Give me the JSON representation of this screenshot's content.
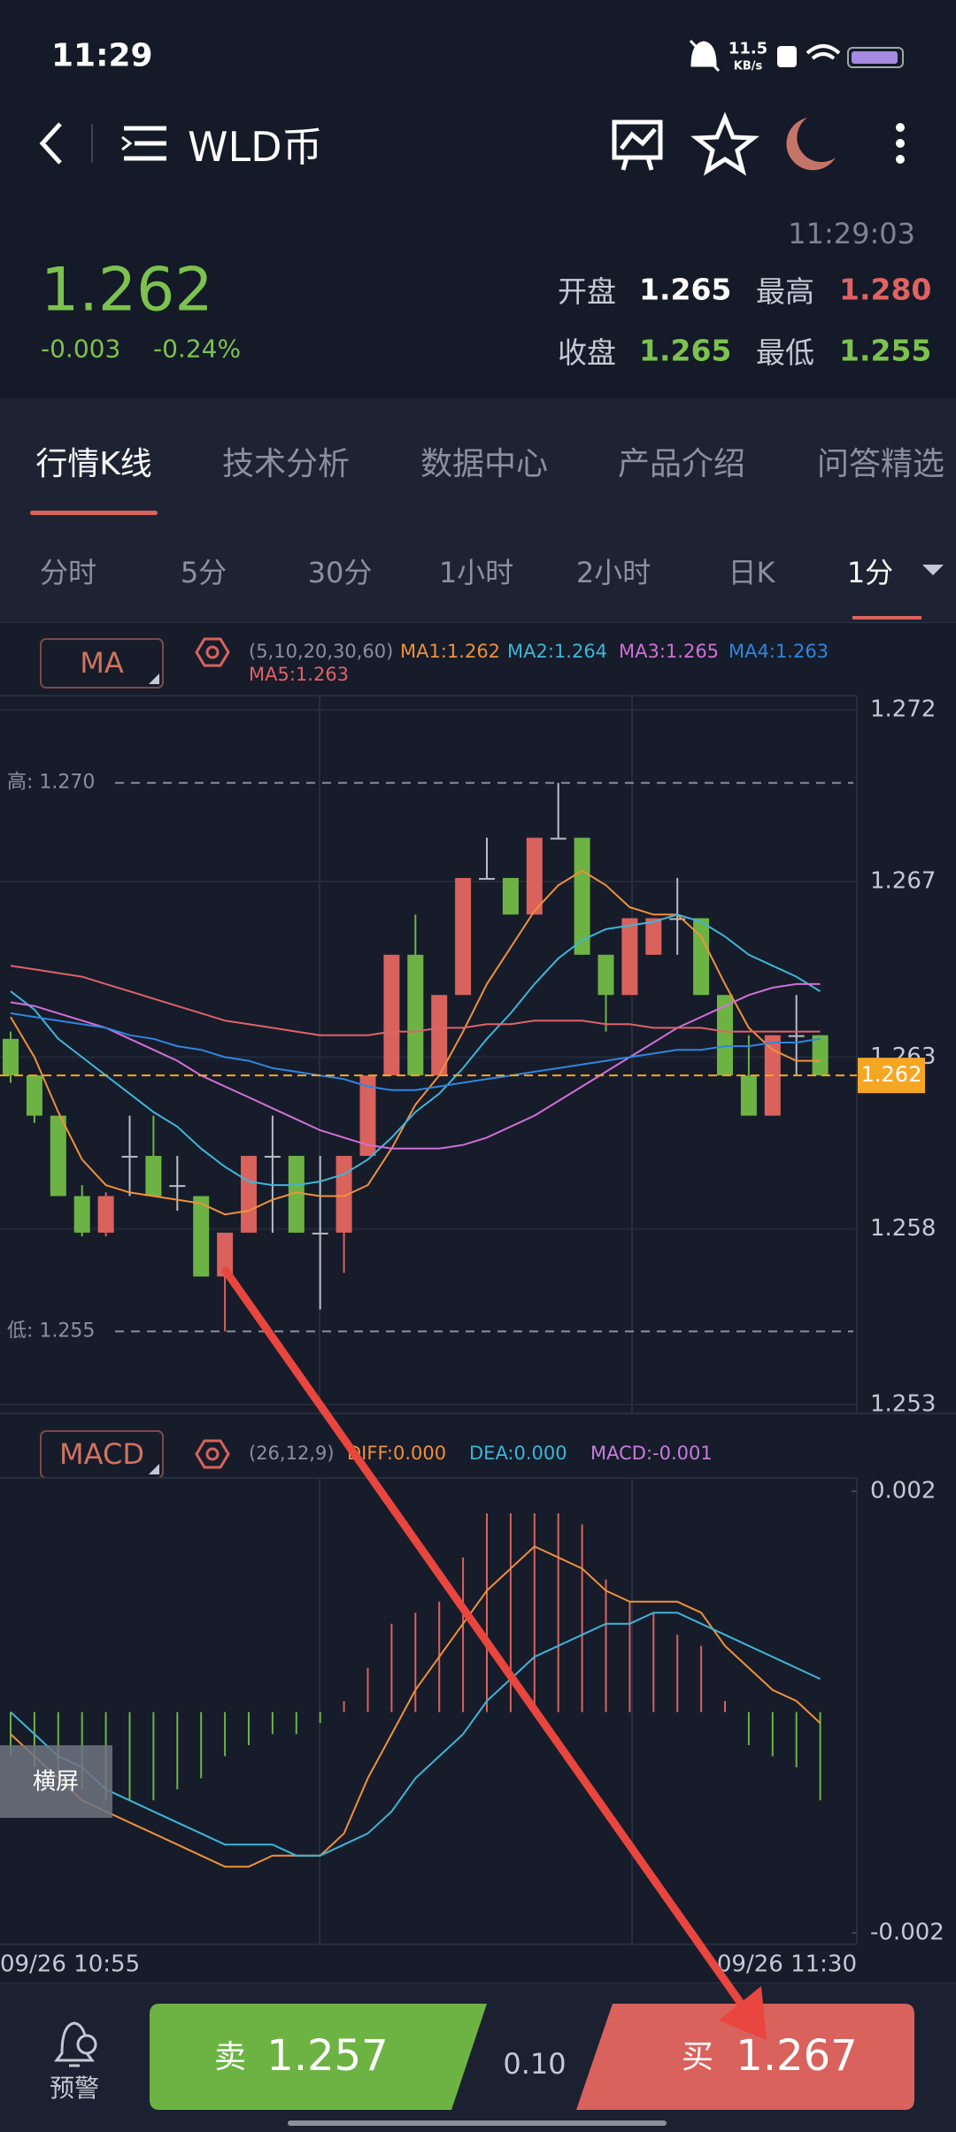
{
  "status_bar": {
    "time": "11:29",
    "net_speed": "11.5",
    "net_unit": "KB/s"
  },
  "header": {
    "title": "WLD币"
  },
  "quote": {
    "price": "1.262",
    "change": "-0.003",
    "change_pct": "-0.24%",
    "time": "11:29:03",
    "stats": [
      {
        "label": "开盘",
        "value": "1.265"
      },
      {
        "label": "最高",
        "value": "1.280"
      },
      {
        "label": "收盘",
        "value": "1.265"
      },
      {
        "label": "最低",
        "value": "1.255"
      }
    ]
  },
  "tabs": [
    "行情K线",
    "技术分析",
    "数据中心",
    "产品介绍",
    "问答精选"
  ],
  "periods": [
    "分时",
    "5分",
    "30分",
    "1小时",
    "2小时",
    "日K",
    "1分"
  ],
  "chart_data": [
    {
      "type": "candlestick",
      "indicator": "MA",
      "params": "(5,10,20,30,60)",
      "up_color": "#d9625d",
      "down_color": "#6db344",
      "flat_color": "#b8bcc6",
      "grid": true,
      "open": [
        1.263,
        1.262,
        1.2609,
        1.2587,
        1.2577,
        1.2598,
        1.2598,
        1.259,
        1.2587,
        1.2565,
        1.2577,
        1.2598,
        1.2598,
        1.2577,
        1.2577,
        1.2598,
        1.262,
        1.2653,
        1.262,
        1.2642,
        1.2674,
        1.2674,
        1.2664,
        1.2685,
        1.2685,
        1.2653,
        1.2642,
        1.2653,
        1.2663,
        1.2663,
        1.2642,
        1.262,
        1.2609,
        1.2631,
        1.2631
      ],
      "high": [
        1.2632,
        1.262,
        1.2609,
        1.259,
        1.2588,
        1.2609,
        1.2609,
        1.2598,
        1.2587,
        1.2577,
        1.2598,
        1.2609,
        1.2598,
        1.2598,
        1.2598,
        1.262,
        1.2653,
        1.2664,
        1.2642,
        1.2674,
        1.2685,
        1.2674,
        1.2685,
        1.27,
        1.2685,
        1.2653,
        1.2663,
        1.2663,
        1.2674,
        1.2663,
        1.2642,
        1.2631,
        1.2631,
        1.2642,
        1.2631
      ],
      "low": [
        1.2618,
        1.2607,
        1.2587,
        1.2576,
        1.2576,
        1.2587,
        1.2587,
        1.2583,
        1.2565,
        1.255,
        1.2577,
        1.2577,
        1.2577,
        1.2556,
        1.2566,
        1.2598,
        1.262,
        1.262,
        1.262,
        1.2642,
        1.2674,
        1.2664,
        1.2664,
        1.2685,
        1.2653,
        1.2632,
        1.2642,
        1.2653,
        1.2653,
        1.2642,
        1.262,
        1.2609,
        1.2609,
        1.262,
        1.262
      ],
      "close": [
        1.262,
        1.2609,
        1.2587,
        1.2577,
        1.2587,
        1.2598,
        1.2587,
        1.259,
        1.2565,
        1.2577,
        1.2598,
        1.2598,
        1.2577,
        1.2577,
        1.2598,
        1.262,
        1.2653,
        1.262,
        1.2642,
        1.2674,
        1.2674,
        1.2664,
        1.2685,
        1.2685,
        1.2653,
        1.2642,
        1.2663,
        1.2663,
        1.2663,
        1.2642,
        1.262,
        1.2609,
        1.2631,
        1.2631,
        1.262
      ],
      "series": [
        {
          "name": "MA1:1.262",
          "color": "#f0913a",
          "values": [
            1.2636,
            1.2625,
            1.261,
            1.2597,
            1.259,
            1.2588,
            1.2587,
            1.2586,
            1.2585,
            1.2582,
            1.2583,
            1.2586,
            1.2588,
            1.2587,
            1.2587,
            1.259,
            1.26,
            1.2612,
            1.262,
            1.2632,
            1.2645,
            1.2655,
            1.2665,
            1.2672,
            1.2676,
            1.2672,
            1.2666,
            1.2664,
            1.2664,
            1.2658,
            1.2645,
            1.2633,
            1.2627,
            1.2624,
            1.2624
          ]
        },
        {
          "name": "MA2:1.264",
          "color": "#3fb5d8",
          "values": [
            1.2643,
            1.2638,
            1.263,
            1.2625,
            1.262,
            1.2615,
            1.261,
            1.2606,
            1.26,
            1.2595,
            1.2591,
            1.259,
            1.259,
            1.2591,
            1.2593,
            1.2597,
            1.2603,
            1.261,
            1.2615,
            1.2622,
            1.263,
            1.2637,
            1.2645,
            1.2652,
            1.2657,
            1.266,
            1.2661,
            1.2662,
            1.2664,
            1.2662,
            1.2658,
            1.2653,
            1.265,
            1.2647,
            1.2643
          ]
        },
        {
          "name": "MA3:1.265",
          "color": "#d36fd8",
          "values": [
            1.264,
            1.2639,
            1.2637,
            1.2635,
            1.2633,
            1.263,
            1.2627,
            1.2624,
            1.262,
            1.2617,
            1.2614,
            1.2611,
            1.2608,
            1.2605,
            1.2603,
            1.2601,
            1.26,
            1.26,
            1.26,
            1.2601,
            1.2603,
            1.2606,
            1.2609,
            1.2613,
            1.2617,
            1.2621,
            1.2625,
            1.2629,
            1.2633,
            1.2636,
            1.2639,
            1.2642,
            1.2644,
            1.2645,
            1.2645
          ]
        },
        {
          "name": "MA4:1.263",
          "color": "#2f86e0",
          "values": [
            1.2637,
            1.2636,
            1.2635,
            1.2634,
            1.2633,
            1.2631,
            1.263,
            1.2628,
            1.2627,
            1.2625,
            1.2624,
            1.2622,
            1.2621,
            1.262,
            1.2619,
            1.2617,
            1.2616,
            1.2616,
            1.2617,
            1.2618,
            1.2619,
            1.262,
            1.2621,
            1.2622,
            1.2623,
            1.2624,
            1.2625,
            1.2626,
            1.2627,
            1.2627,
            1.2628,
            1.2628,
            1.2629,
            1.2629,
            1.263
          ]
        },
        {
          "name": "MA5:1.263",
          "color": "#e0626a",
          "values": [
            1.265,
            1.2649,
            1.2648,
            1.2647,
            1.2645,
            1.2643,
            1.2641,
            1.2639,
            1.2637,
            1.2635,
            1.2634,
            1.2633,
            1.2632,
            1.2631,
            1.2631,
            1.2631,
            1.2632,
            1.2632,
            1.2633,
            1.2633,
            1.2634,
            1.2634,
            1.2635,
            1.2635,
            1.2635,
            1.2634,
            1.2634,
            1.2633,
            1.2633,
            1.2633,
            1.2632,
            1.2632,
            1.2632,
            1.2632,
            1.2632
          ]
        }
      ],
      "ylim": [
        1.253,
        1.272
      ],
      "yticks": [
        1.272,
        {
          "value": 1.2673,
          "label": "1.267"
        },
        {
          "value": 1.2625,
          "label": "1.263"
        },
        {
          "value": 1.2578,
          "label": "1.258"
        },
        1.253
      ],
      "high_mark": {
        "value": 1.27,
        "label": "高: 1.270"
      },
      "low_mark": {
        "value": 1.255,
        "label": "低: 1.255"
      },
      "last_price": 1.262
    },
    {
      "type": "macd",
      "indicator": "MACD",
      "params": "(26,12,9)",
      "series": [
        {
          "name": "DIFF:0.000",
          "color": "#f0913a",
          "values": [
            -0.0002,
            -0.0004,
            -0.0006,
            -0.0008,
            -0.0009,
            -0.001,
            -0.0011,
            -0.0012,
            -0.0013,
            -0.0014,
            -0.0014,
            -0.0013,
            -0.0013,
            -0.0013,
            -0.0011,
            -0.0006,
            -0.0002,
            0.0002,
            0.0005,
            0.0008,
            0.0011,
            0.0013,
            0.0015,
            0.0014,
            0.0013,
            0.0011,
            0.001,
            0.001,
            0.001,
            0.0009,
            0.0006,
            0.0004,
            0.0002,
            0.0001,
            -0.0001
          ]
        },
        {
          "name": "DEA:0.000",
          "color": "#3fb5d8",
          "values": [
            0,
            -0.0002,
            -0.0004,
            -0.0005,
            -0.0007,
            -0.0008,
            -0.0009,
            -0.001,
            -0.0011,
            -0.0012,
            -0.0012,
            -0.0012,
            -0.0013,
            -0.0013,
            -0.0012,
            -0.0011,
            -0.0009,
            -0.0006,
            -0.0004,
            -0.0002,
            0.0001,
            0.0003,
            0.0005,
            0.0006,
            0.0007,
            0.0008,
            0.0008,
            0.0009,
            0.0009,
            0.0008,
            0.0007,
            0.0006,
            0.0005,
            0.0004,
            0.0003
          ]
        }
      ],
      "histogram": {
        "name": "MACD:-0.001",
        "color": "#c77ddc",
        "up_color": "#d9625d",
        "down_color": "#6db344",
        "values": [
          -0.0004,
          -0.0005,
          -0.0006,
          -0.0007,
          -0.0008,
          -0.0008,
          -0.0008,
          -0.0007,
          -0.0006,
          -0.0004,
          -0.0003,
          -0.0002,
          -0.0002,
          -0.0001,
          0.0001,
          0.0004,
          0.0008,
          0.0009,
          0.001,
          0.0014,
          0.0018,
          0.0018,
          0.0018,
          0.0018,
          0.0017,
          0.0012,
          0.001,
          0.0009,
          0.0007,
          0.0006,
          0.0001,
          -0.0003,
          -0.0004,
          -0.0005,
          -0.0008
        ]
      },
      "ylim": [
        -0.002,
        0.002
      ],
      "yticks": [
        0.002,
        -0.002
      ],
      "x_labels": [
        "09/26 10:55",
        "09/26 11:30"
      ]
    }
  ],
  "rotate_button": "横屏",
  "footer": {
    "alert": "预警",
    "sell_label": "卖",
    "sell_price": "1.257",
    "spread": "0.10",
    "buy_label": "买",
    "buy_price": "1.267"
  }
}
